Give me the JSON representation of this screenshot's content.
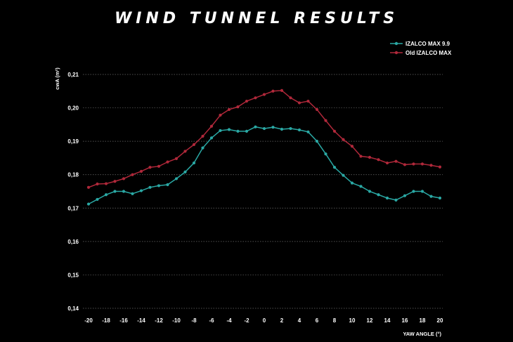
{
  "title": "WIND TUNNEL RESULTS",
  "colors": {
    "background": "#000000",
    "izalco_max_99": "#2aa8a4",
    "old_izalco_max": "#b0283a"
  },
  "chart_data": {
    "type": "line",
    "title": "WIND TUNNEL RESULTS",
    "xlabel": "YAW ANGLE (°)",
    "ylabel": "cwA (m²)",
    "xlim": [
      -20,
      20
    ],
    "ylim": [
      0.14,
      0.21
    ],
    "xticks": [
      "-20",
      "-18",
      "-16",
      "-14",
      "-12",
      "-10",
      "-8",
      "-6",
      "-4",
      "-2",
      "0",
      "2",
      "4",
      "6",
      "8",
      "10",
      "12",
      "14",
      "16",
      "18",
      "20"
    ],
    "yticks": [
      "0,14",
      "0,15",
      "0,16",
      "0,17",
      "0,18",
      "0,19",
      "0,20",
      "0,21"
    ],
    "ytick_values": [
      0.14,
      0.15,
      0.16,
      0.17,
      0.18,
      0.19,
      0.2,
      0.21
    ],
    "grid": true,
    "legend_position": "top-right",
    "x": [
      -20,
      -19,
      -18,
      -17,
      -16,
      -15,
      -14,
      -13,
      -12,
      -11,
      -10,
      -9,
      -8,
      -7,
      -6,
      -5,
      -4,
      -3,
      -2,
      -1,
      0,
      1,
      2,
      3,
      4,
      5,
      6,
      7,
      8,
      9,
      10,
      11,
      12,
      13,
      14,
      15,
      16,
      17,
      18,
      19,
      20
    ],
    "series": [
      {
        "name": "IZALCO MAX 9.9",
        "color": "#2aa8a4",
        "values": [
          0.1712,
          0.1726,
          0.174,
          0.175,
          0.175,
          0.1743,
          0.1752,
          0.1762,
          0.1767,
          0.177,
          0.1788,
          0.1808,
          0.1835,
          0.188,
          0.191,
          0.1932,
          0.1935,
          0.193,
          0.193,
          0.1943,
          0.1938,
          0.1942,
          0.1936,
          0.1938,
          0.1934,
          0.1928,
          0.19,
          0.1862,
          0.1822,
          0.1798,
          0.1775,
          0.1765,
          0.175,
          0.174,
          0.173,
          0.1724,
          0.1737,
          0.175,
          0.175,
          0.1735,
          0.173
        ]
      },
      {
        "name": "Old IZALCO MAX",
        "color": "#b0283a",
        "values": [
          0.1762,
          0.1772,
          0.1773,
          0.178,
          0.1788,
          0.18,
          0.181,
          0.1822,
          0.1825,
          0.1838,
          0.1848,
          0.187,
          0.189,
          0.1915,
          0.1945,
          0.1978,
          0.1995,
          0.2003,
          0.202,
          0.203,
          0.204,
          0.205,
          0.2052,
          0.203,
          0.2015,
          0.202,
          0.1995,
          0.1962,
          0.193,
          0.1905,
          0.1885,
          0.1855,
          0.1852,
          0.1845,
          0.1835,
          0.184,
          0.183,
          0.1832,
          0.1832,
          0.1828,
          0.1823
        ]
      }
    ]
  }
}
